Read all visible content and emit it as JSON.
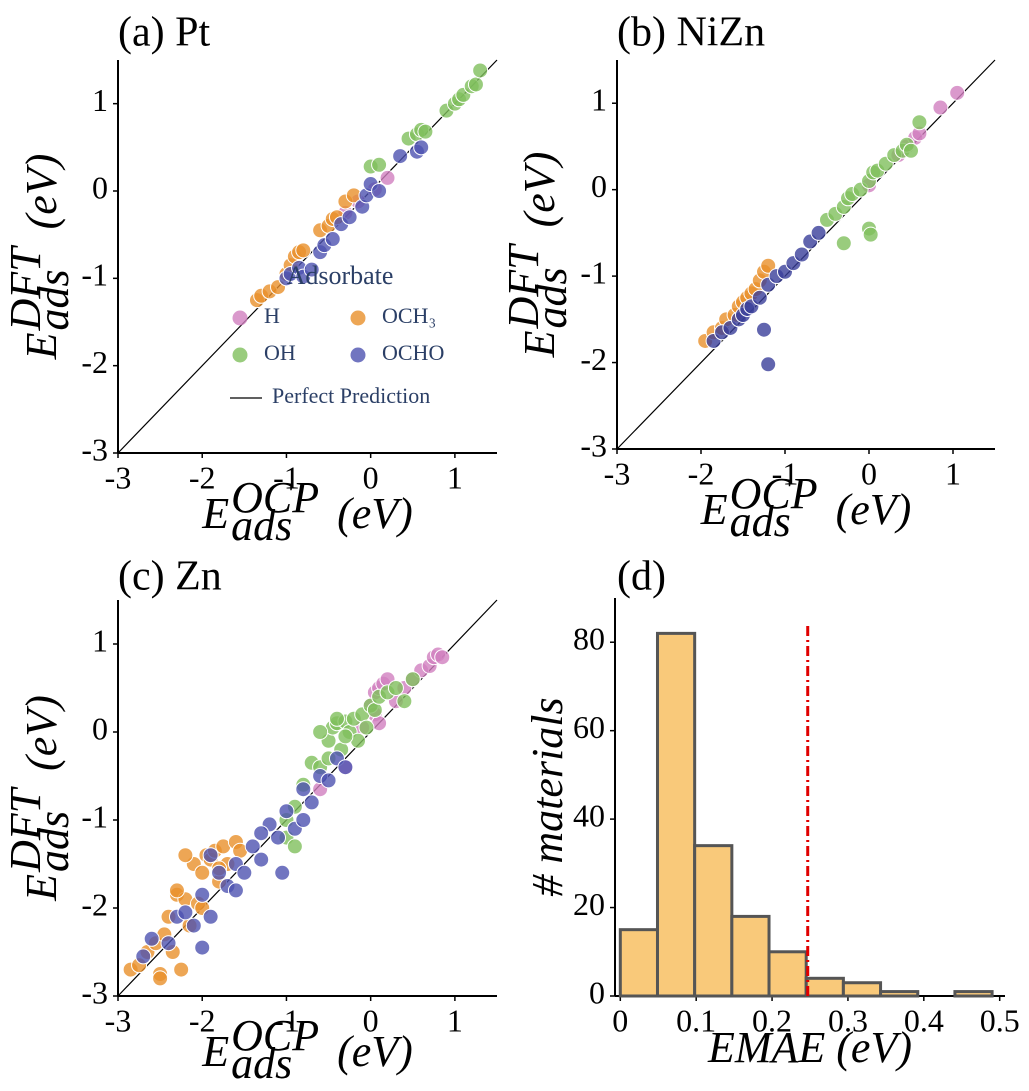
{
  "chart_data": [
    {
      "type": "scatter",
      "title": "(a) Pt",
      "xlabel": {
        "symbol": "E",
        "sub": "ads",
        "sup": "OCP",
        "unit": "(eV)"
      },
      "ylabel": {
        "symbol": "E",
        "sub": "ads",
        "sup": "DFT",
        "unit": "(eV)"
      },
      "xlim": [
        -3,
        1.5
      ],
      "ylim": [
        -3,
        1.5
      ],
      "xticks": [
        -3,
        -2,
        -1,
        0,
        1
      ],
      "yticks": [
        -3,
        -2,
        -1,
        0,
        1
      ],
      "legend": "lower right",
      "legend_title": "Adsorbate",
      "reference_line": {
        "label": "Perfect Prediction",
        "color": "#000000"
      },
      "series": [
        {
          "name": "H",
          "color": "#d17fbf",
          "x": [
            -0.3,
            -0.15,
            0.05,
            0.2
          ],
          "y": [
            -0.25,
            -0.12,
            0.02,
            0.15
          ]
        },
        {
          "name": "OH",
          "color": "#7fbf5c",
          "x": [
            0.0,
            0.1,
            0.45,
            0.55,
            0.6,
            0.65,
            0.9,
            1.0,
            1.05,
            1.1,
            1.2,
            1.25,
            1.3
          ],
          "y": [
            0.28,
            0.3,
            0.6,
            0.65,
            0.7,
            0.68,
            0.92,
            1.0,
            1.05,
            1.1,
            1.2,
            1.22,
            1.38
          ]
        },
        {
          "name": "OCH₃",
          "color": "#e8902a",
          "x": [
            -1.35,
            -1.3,
            -1.2,
            -1.1,
            -1.0,
            -0.95,
            -0.9,
            -0.85,
            -0.8,
            -0.6,
            -0.5,
            -0.45,
            -0.4,
            -0.3,
            -0.2
          ],
          "y": [
            -1.25,
            -1.2,
            -1.15,
            -1.1,
            -0.95,
            -0.85,
            -0.75,
            -0.7,
            -0.68,
            -0.45,
            -0.4,
            -0.32,
            -0.3,
            -0.12,
            -0.05
          ]
        },
        {
          "name": "OCHO",
          "color": "#4e52b0",
          "x": [
            -1.0,
            -0.95,
            -0.85,
            -0.8,
            -0.7,
            -0.6,
            -0.55,
            -0.45,
            -0.35,
            -0.25,
            -0.1,
            -0.05,
            0.0,
            0.1,
            0.35,
            0.55,
            0.6
          ],
          "y": [
            -1.0,
            -0.95,
            -0.88,
            -0.98,
            -0.9,
            -0.7,
            -0.62,
            -0.55,
            -0.38,
            -0.3,
            -0.18,
            -0.05,
            0.08,
            0.0,
            0.4,
            0.45,
            0.5
          ]
        }
      ]
    },
    {
      "type": "scatter",
      "title": "(b) NiZn",
      "xlabel": {
        "symbol": "E",
        "sub": "ads",
        "sup": "OCP",
        "unit": "(eV)"
      },
      "ylabel": {
        "symbol": "E",
        "sub": "ads",
        "sup": "DFT",
        "unit": "(eV)"
      },
      "xlim": [
        -3,
        1.5
      ],
      "ylim": [
        -3,
        1.5
      ],
      "xticks": [
        -3,
        -2,
        -1,
        0,
        1
      ],
      "yticks": [
        -3,
        -2,
        -1,
        0,
        1
      ],
      "reference_line": {
        "color": "#000000"
      },
      "series": [
        {
          "color": "#d17fbf",
          "x": [
            0.0,
            0.35,
            0.45,
            0.55,
            0.6,
            0.85,
            1.05
          ],
          "y": [
            0.05,
            0.4,
            0.5,
            0.6,
            0.65,
            0.95,
            1.12
          ]
        },
        {
          "color": "#7fbf5c",
          "x": [
            -0.5,
            -0.4,
            -0.3,
            -0.25,
            -0.2,
            -0.1,
            0.0,
            0.05,
            0.1,
            0.2,
            0.3,
            0.4,
            0.45,
            0.5,
            0.6,
            0.0,
            0.02,
            -0.3
          ],
          "y": [
            -0.35,
            -0.28,
            -0.2,
            -0.1,
            -0.05,
            0.0,
            0.1,
            0.2,
            0.22,
            0.3,
            0.4,
            0.45,
            0.52,
            0.45,
            0.78,
            -0.45,
            -0.52,
            -0.62
          ]
        },
        {
          "color": "#e8902a",
          "x": [
            -1.95,
            -1.85,
            -1.75,
            -1.7,
            -1.6,
            -1.55,
            -1.5,
            -1.45,
            -1.4,
            -1.35,
            -1.3,
            -1.25,
            -1.2
          ],
          "y": [
            -1.75,
            -1.65,
            -1.6,
            -1.5,
            -1.45,
            -1.35,
            -1.3,
            -1.25,
            -1.2,
            -1.15,
            -1.05,
            -0.95,
            -0.88
          ]
        },
        {
          "color": "#3a3f9a",
          "x": [
            -1.85,
            -1.75,
            -1.65,
            -1.55,
            -1.5,
            -1.45,
            -1.4,
            -1.3,
            -1.2,
            -1.1,
            -1.0,
            -0.9,
            -0.8,
            -0.7,
            -0.6,
            -1.25,
            -1.2
          ],
          "y": [
            -1.75,
            -1.65,
            -1.6,
            -1.5,
            -1.45,
            -1.38,
            -1.35,
            -1.25,
            -1.1,
            -1.0,
            -0.95,
            -0.85,
            -0.75,
            -0.6,
            -0.5,
            -1.62,
            -2.02
          ]
        }
      ]
    },
    {
      "type": "scatter",
      "title": "(c) Zn",
      "xlabel": {
        "symbol": "E",
        "sub": "ads",
        "sup": "OCP",
        "unit": "(eV)"
      },
      "ylabel": {
        "symbol": "E",
        "sub": "ads",
        "sup": "DFT",
        "unit": "(eV)"
      },
      "xlim": [
        -3,
        1.5
      ],
      "ylim": [
        -3,
        1.5
      ],
      "xticks": [
        -3,
        -2,
        -1,
        0,
        1
      ],
      "yticks": [
        -3,
        -2,
        -1,
        0,
        1
      ],
      "reference_line": {
        "color": "#000000"
      },
      "series": [
        {
          "color": "#d17fbf",
          "x": [
            -0.6,
            -0.3,
            -0.1,
            0.0,
            0.05,
            0.1,
            0.15,
            0.2,
            0.3,
            0.4,
            0.5,
            0.6,
            0.7,
            0.75,
            0.8,
            0.85,
            0.05,
            0.1
          ],
          "y": [
            -0.65,
            -0.4,
            0.05,
            0.3,
            0.45,
            0.5,
            0.55,
            0.6,
            0.35,
            0.5,
            0.6,
            0.7,
            0.75,
            0.85,
            0.88,
            0.85,
            0.2,
            0.1
          ]
        },
        {
          "color": "#7fbf5c",
          "x": [
            -1.0,
            -0.9,
            -0.8,
            -0.7,
            -0.6,
            -0.5,
            -0.45,
            -0.4,
            -0.35,
            -0.3,
            -0.25,
            -0.2,
            -0.15,
            -0.1,
            -0.05,
            0.0,
            0.05,
            0.1,
            0.2,
            0.3,
            0.4,
            0.5,
            -0.6,
            -0.5,
            -0.4,
            -0.3,
            -1.0,
            -0.9
          ],
          "y": [
            -1.0,
            -0.85,
            -0.6,
            -0.35,
            -0.4,
            -0.1,
            0.05,
            0.1,
            -0.2,
            0.12,
            0.0,
            0.15,
            -0.1,
            0.2,
            0.05,
            0.3,
            0.25,
            0.4,
            0.45,
            0.5,
            0.35,
            0.6,
            0.0,
            -0.3,
            0.15,
            -0.05,
            -1.2,
            -1.3
          ]
        },
        {
          "color": "#e8902a",
          "x": [
            -2.85,
            -2.75,
            -2.65,
            -2.55,
            -2.5,
            -2.45,
            -2.4,
            -2.35,
            -2.3,
            -2.25,
            -2.2,
            -2.15,
            -2.1,
            -2.05,
            -2.0,
            -1.95,
            -1.9,
            -1.85,
            -1.8,
            -1.75,
            -1.7,
            -1.6,
            -1.55,
            -2.5,
            -2.3,
            -2.2,
            -2.0,
            -1.8
          ],
          "y": [
            -2.7,
            -2.65,
            -2.5,
            -2.4,
            -2.75,
            -2.3,
            -2.1,
            -2.5,
            -1.85,
            -2.7,
            -1.9,
            -2.2,
            -1.5,
            -1.95,
            -1.6,
            -1.4,
            -1.45,
            -1.35,
            -1.7,
            -1.3,
            -1.5,
            -1.25,
            -1.35,
            -2.8,
            -1.8,
            -1.4,
            -2.0,
            -1.55
          ]
        },
        {
          "color": "#4e52b0",
          "x": [
            -2.7,
            -2.6,
            -2.4,
            -2.3,
            -2.2,
            -2.1,
            -2.0,
            -1.9,
            -1.8,
            -1.7,
            -1.6,
            -1.5,
            -1.4,
            -1.3,
            -1.2,
            -1.1,
            -1.0,
            -0.9,
            -0.8,
            -0.7,
            -0.6,
            -0.5,
            -0.4,
            -0.3,
            -1.9,
            -1.6,
            -1.3,
            -1.05,
            -0.8,
            -2.0
          ],
          "y": [
            -2.55,
            -2.35,
            -2.4,
            -2.1,
            -2.05,
            -2.2,
            -1.85,
            -2.1,
            -1.6,
            -1.75,
            -1.5,
            -1.6,
            -1.3,
            -1.45,
            -1.05,
            -1.2,
            -0.9,
            -1.1,
            -0.65,
            -0.8,
            -0.5,
            -0.55,
            -0.3,
            -0.4,
            -1.4,
            -1.8,
            -1.15,
            -1.6,
            -1.0,
            -2.45
          ]
        }
      ]
    },
    {
      "type": "histogram",
      "title": "(d)",
      "xlabel": "EMAE (eV)",
      "ylabel": "# materials",
      "bins": [
        0,
        0.049,
        0.098,
        0.147,
        0.196,
        0.245,
        0.294,
        0.343,
        0.392,
        0.441,
        0.49
      ],
      "values": [
        15,
        82,
        34,
        18,
        10,
        4,
        3,
        1,
        0,
        1
      ],
      "color": "#f9c97a",
      "edgecolor": "#555555",
      "xlim": [
        -0.007,
        0.507
      ],
      "ylim": [
        0,
        90
      ],
      "xticks": [
        0,
        0.1,
        0.2,
        0.3,
        0.4,
        0.5
      ],
      "yticks": [
        0,
        20,
        40,
        60,
        80
      ],
      "vline": {
        "x": 0.247,
        "ymax": 84,
        "color": "#e00000"
      }
    }
  ]
}
